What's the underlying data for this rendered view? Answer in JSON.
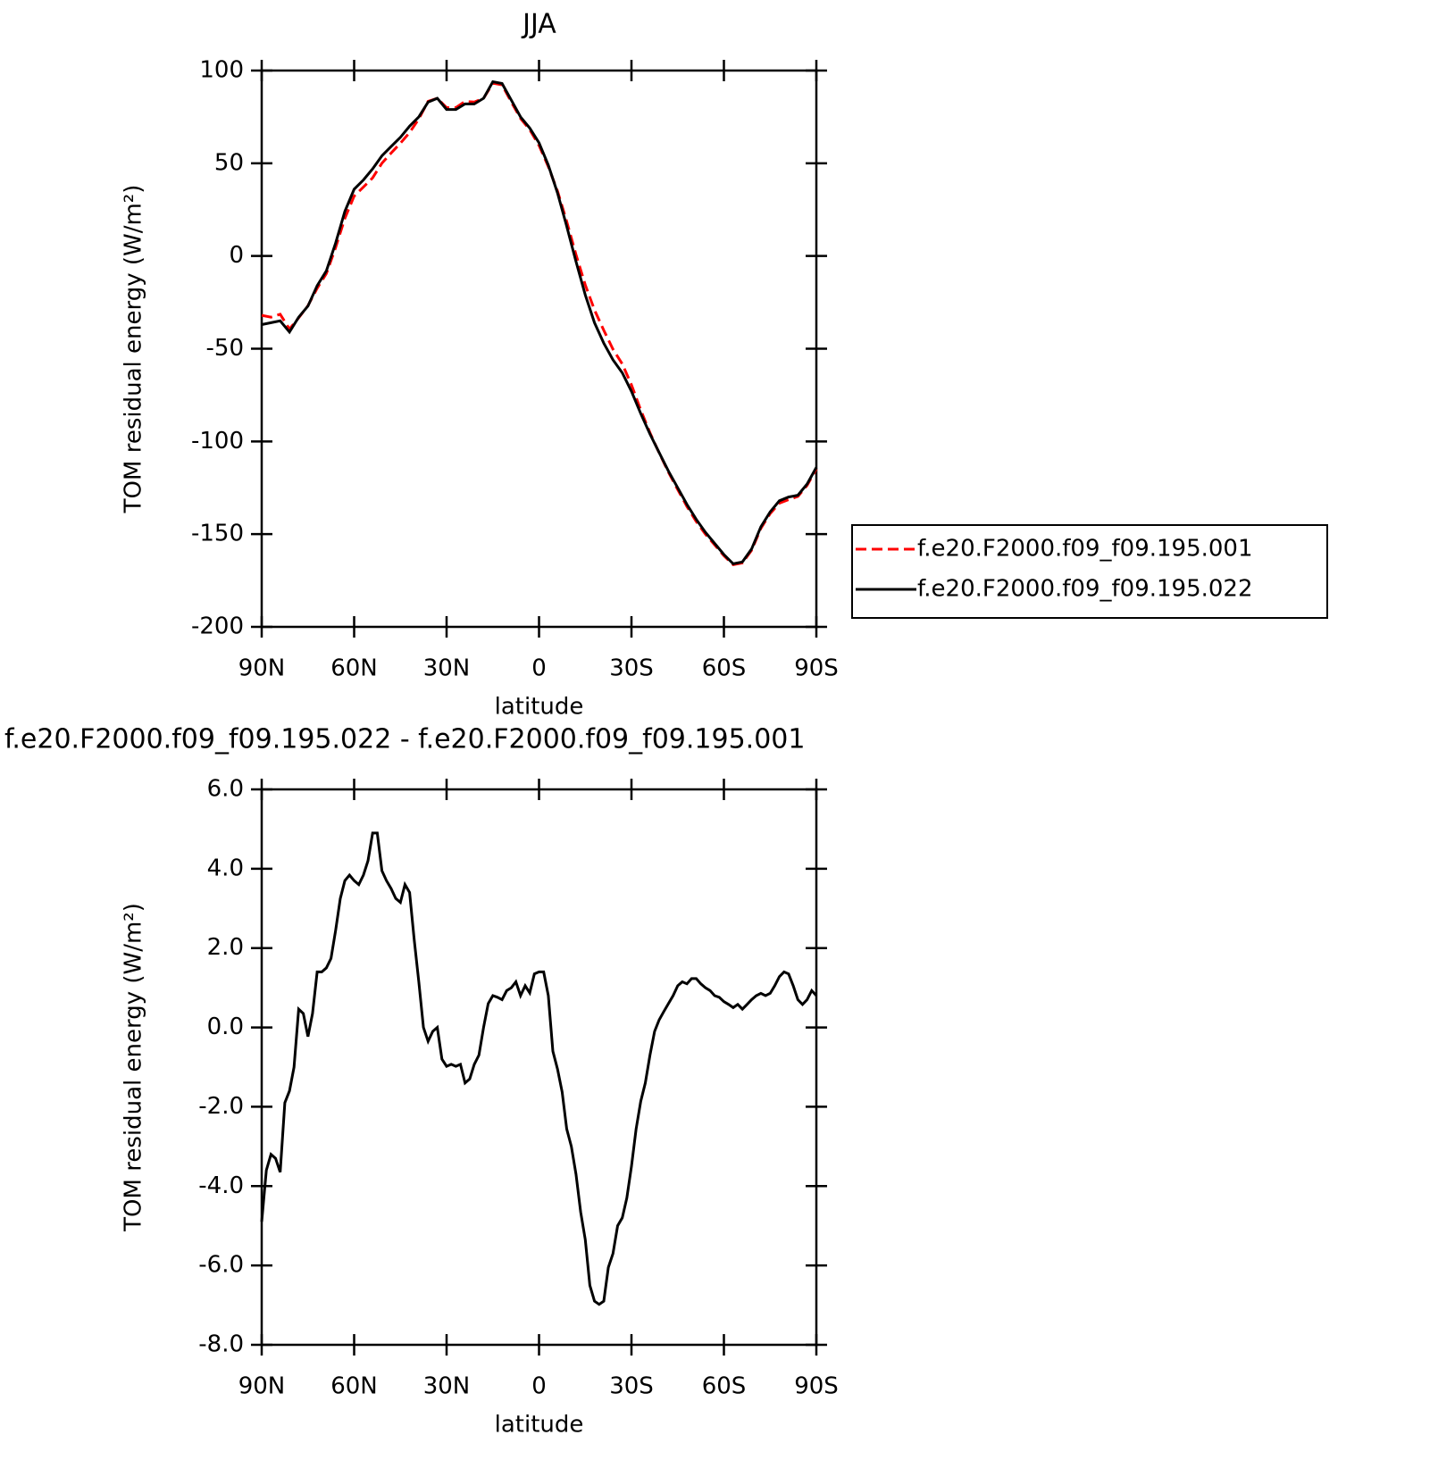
{
  "chart_data": [
    {
      "type": "line",
      "title": "JJA",
      "xlabel": "latitude",
      "ylabel": "TOM residual energy (W/m²)",
      "x": [
        90,
        87,
        84,
        81,
        78,
        75,
        72,
        69,
        66,
        63,
        60,
        57,
        54,
        51,
        48,
        45,
        42,
        39,
        36,
        33,
        30,
        27,
        24,
        21,
        18,
        15,
        12,
        9,
        6,
        3,
        0,
        -3,
        -6,
        -9,
        -12,
        -15,
        -18,
        -21,
        -24,
        -27,
        -30,
        -33,
        -36,
        -39,
        -42,
        -45,
        -48,
        -51,
        -54,
        -57,
        -60,
        -63,
        -66,
        -69,
        -72,
        -75,
        -78,
        -81,
        -84,
        -87,
        -90
      ],
      "series": [
        {
          "name": "f.e20.F2000.f09_f09.195.001",
          "color": "#ff0000",
          "line_style": "dashed",
          "values": [
            -32,
            -33,
            -31.4,
            -39.4,
            -33.4,
            -26.8,
            -17.4,
            -9.5,
            4.6,
            20.3,
            32.3,
            37.2,
            42.1,
            50,
            55.5,
            60.8,
            66.6,
            73.9,
            83.4,
            85,
            80,
            80,
            83.4,
            83,
            85,
            93.2,
            92.3,
            83,
            74.2,
            68.1,
            59.6,
            48.2,
            35,
            18.6,
            0.7,
            -15.6,
            -29.1,
            -40.1,
            -50.3,
            -58.2,
            -69.5,
            -83.1,
            -95.3,
            -106.2,
            -116.6,
            -126,
            -135.1,
            -143.2,
            -150,
            -155.8,
            -161.6,
            -166.5,
            -165.5,
            -158.7,
            -146.9,
            -138.9,
            -133.3,
            -131.4,
            -129.7,
            -123.7,
            -114.8
          ]
        },
        {
          "name": "f.e20.F2000.f09_f09.195.022",
          "color": "#000000",
          "line_style": "solid",
          "values": [
            -37,
            -36,
            -35,
            -41,
            -33,
            -27,
            -16,
            -8,
            7,
            24,
            36,
            41,
            47,
            54,
            59,
            64,
            70,
            75,
            83,
            85,
            79,
            79,
            82,
            82,
            85,
            94,
            93,
            84,
            75,
            69,
            61,
            49,
            34,
            16,
            -3,
            -21,
            -36,
            -47,
            -56,
            -63,
            -73,
            -85,
            -96,
            -106,
            -116,
            -125,
            -134,
            -142,
            -149,
            -155,
            -161,
            -166,
            -165,
            -158,
            -146,
            -138,
            -132,
            -130,
            -129,
            -123,
            -114
          ]
        }
      ],
      "xlim": [
        90,
        -90
      ],
      "xticks": [
        {
          "value": 90,
          "label": "90N"
        },
        {
          "value": 60,
          "label": "60N"
        },
        {
          "value": 30,
          "label": "30N"
        },
        0,
        {
          "value": -30,
          "label": "30S"
        },
        {
          "value": -60,
          "label": "60S"
        },
        {
          "value": -90,
          "label": "90S"
        }
      ],
      "ylim": [
        -200,
        100
      ],
      "yticks": [
        -200,
        -150,
        -100,
        -50,
        0,
        50,
        100
      ],
      "legend": "outside-right"
    },
    {
      "type": "line",
      "title": "f.e20.F2000.f09_f09.195.022 - f.e20.F2000.f09_f09.195.001",
      "xlabel": "latitude",
      "ylabel": "TOM residual energy (W/m²)",
      "x": [
        90,
        88.5,
        87,
        85.5,
        84,
        82.5,
        81,
        79.5,
        78,
        76.5,
        75,
        73.5,
        72,
        70.5,
        69,
        67.5,
        66,
        64.5,
        63,
        61.5,
        60,
        58.5,
        57,
        55.5,
        54,
        52.5,
        51,
        49.5,
        48,
        46.5,
        45,
        43.5,
        42,
        40.5,
        39,
        37.5,
        36,
        34.5,
        33,
        31.5,
        30,
        28.5,
        27,
        25.5,
        24,
        22.5,
        21,
        19.5,
        18,
        16.5,
        15,
        13.5,
        12,
        10.5,
        9,
        7.5,
        6,
        4.5,
        3,
        1.5,
        0,
        -1.5,
        -3,
        -4.5,
        -6,
        -7.5,
        -9,
        -10.5,
        -12,
        -13.5,
        -15,
        -16.5,
        -18,
        -19.5,
        -21,
        -22.5,
        -24,
        -25.5,
        -27,
        -28.5,
        -30,
        -31.5,
        -33,
        -34.5,
        -36,
        -37.5,
        -39,
        -40.5,
        -42,
        -43.5,
        -45,
        -46.5,
        -48,
        -49.5,
        -51,
        -52.5,
        -54,
        -55.5,
        -57,
        -58.5,
        -60,
        -61.5,
        -63,
        -64.5,
        -66,
        -67.5,
        -69,
        -70.5,
        -72,
        -73.5,
        -75,
        -76.5,
        -78,
        -79.5,
        -81,
        -82.5,
        -84,
        -85.5,
        -87,
        -88.5,
        -90
      ],
      "values": [
        -4.9,
        -3.6,
        -3.2,
        -3.3,
        -3.65,
        -1.9,
        -1.6,
        -1.0,
        0.46,
        0.35,
        -0.23,
        0.35,
        1.4,
        1.4,
        1.5,
        1.74,
        2.45,
        3.25,
        3.7,
        3.84,
        3.7,
        3.6,
        3.84,
        4.2,
        4.9,
        4.9,
        3.95,
        3.7,
        3.5,
        3.25,
        3.15,
        3.6,
        3.4,
        2.2,
        1.15,
        0.0,
        -0.35,
        -0.1,
        0.0,
        -0.8,
        -0.98,
        -0.93,
        -0.98,
        -0.93,
        -1.4,
        -1.3,
        -0.93,
        -0.7,
        0.0,
        0.6,
        0.8,
        0.76,
        0.7,
        0.93,
        1.0,
        1.15,
        0.8,
        1.05,
        0.87,
        1.35,
        1.4,
        1.4,
        0.8,
        -0.6,
        -1.05,
        -1.63,
        -2.56,
        -3.0,
        -3.7,
        -4.65,
        -5.35,
        -6.5,
        -6.9,
        -6.98,
        -6.9,
        -6.05,
        -5.7,
        -5.0,
        -4.8,
        -4.3,
        -3.5,
        -2.56,
        -1.86,
        -1.4,
        -0.7,
        -0.1,
        0.19,
        0.4,
        0.6,
        0.8,
        1.05,
        1.15,
        1.1,
        1.23,
        1.23,
        1.1,
        1.0,
        0.93,
        0.8,
        0.76,
        0.65,
        0.58,
        0.5,
        0.58,
        0.46,
        0.58,
        0.7,
        0.8,
        0.86,
        0.8,
        0.86,
        1.05,
        1.28,
        1.4,
        1.35,
        1.05,
        0.7,
        0.58,
        0.7,
        0.93,
        0.8
      ],
      "color": "#000000",
      "xlim": [
        90,
        -90
      ],
      "xticks": [
        {
          "value": 90,
          "label": "90N"
        },
        {
          "value": 60,
          "label": "60N"
        },
        {
          "value": 30,
          "label": "30N"
        },
        0,
        {
          "value": -30,
          "label": "30S"
        },
        {
          "value": -60,
          "label": "60S"
        },
        {
          "value": -90,
          "label": "90S"
        }
      ],
      "ylim": [
        -8,
        6
      ],
      "yticks": [
        {
          "value": -8,
          "label": "-8.0"
        },
        {
          "value": -6,
          "label": "-6.0"
        },
        {
          "value": -4,
          "label": "-4.0"
        },
        {
          "value": -2,
          "label": "-2.0"
        },
        {
          "value": 0,
          "label": "0.0"
        },
        {
          "value": 2,
          "label": "2.0"
        },
        {
          "value": 4,
          "label": "4.0"
        },
        {
          "value": 6,
          "label": "6.0"
        }
      ]
    }
  ]
}
